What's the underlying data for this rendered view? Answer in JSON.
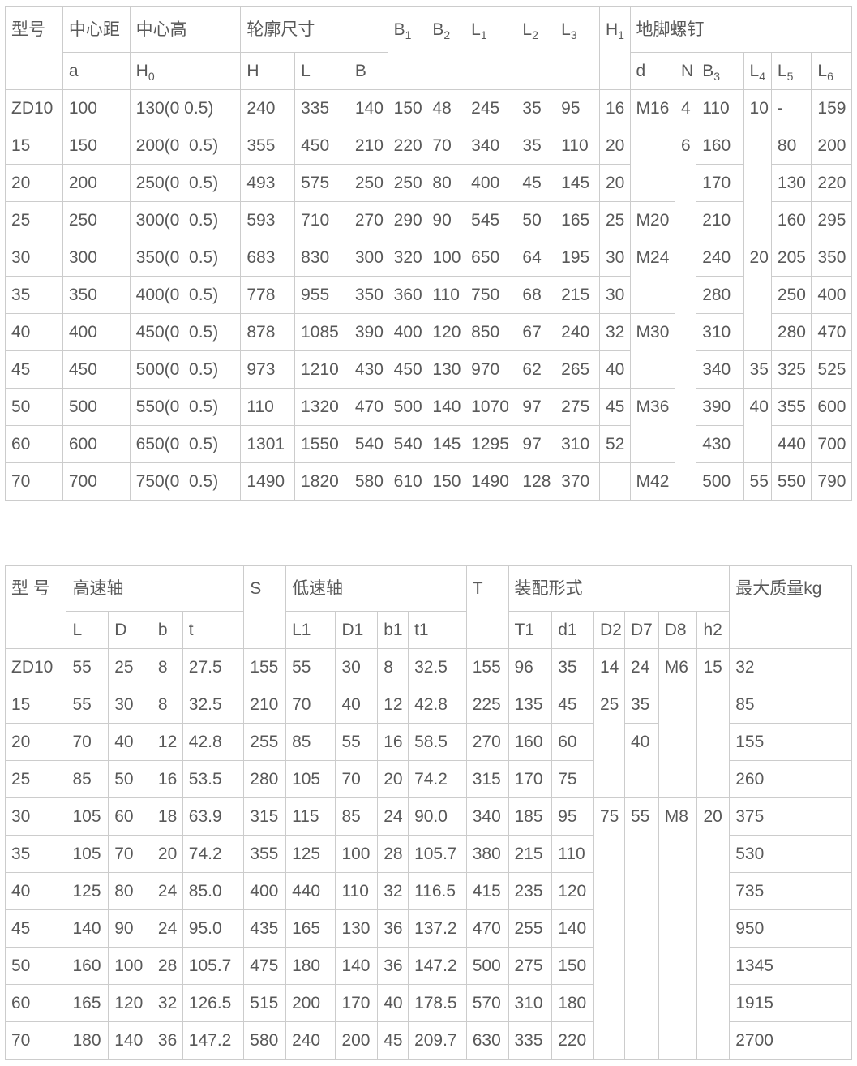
{
  "colors": {
    "text": "#595959",
    "border": "#cccccc",
    "background": "#ffffff"
  },
  "tables": [
    {
      "head": [
        [
          {
            "t": "型号",
            "rs": 2
          },
          {
            "t": "中心距"
          },
          {
            "t": "中心高"
          },
          {
            "t": "轮廓尺寸",
            "cs": 3
          },
          {
            "b": "B",
            "sub": "1",
            "rs": 2
          },
          {
            "b": "B",
            "sub": "2",
            "rs": 2
          },
          {
            "b": "L",
            "sub": "1",
            "rs": 2
          },
          {
            "b": "L",
            "sub": "2",
            "rs": 2
          },
          {
            "b": "L",
            "sub": "3",
            "rs": 2
          },
          {
            "b": "H",
            "sub": "1",
            "rs": 2
          },
          {
            "t": "地脚螺钉",
            "cs": 6
          }
        ],
        [
          {
            "t": "a"
          },
          {
            "b": "H",
            "sub": "0"
          },
          {
            "t": "H"
          },
          {
            "t": "L"
          },
          {
            "t": "B"
          },
          {
            "t": "d"
          },
          {
            "t": "N"
          },
          {
            "b": "B",
            "sub": "3"
          },
          {
            "b": "L",
            "sub": "4"
          },
          {
            "b": "L",
            "sub": "5"
          },
          {
            "b": "L",
            "sub": "6"
          }
        ]
      ],
      "body": [
        [
          "ZD10",
          "100",
          "130(0 0.5)",
          "240",
          "335",
          "140",
          "150",
          "48",
          "245",
          "35",
          "95",
          "16",
          {
            "t": "M16",
            "rs": 3
          },
          "4",
          "110",
          {
            "t": "10",
            "rs": 4
          },
          "-",
          "159"
        ],
        [
          "15",
          "150",
          "200(0  0.5)",
          "355",
          "450",
          "210",
          "220",
          "70",
          "340",
          "35",
          "110",
          "20",
          {
            "t": "6",
            "rs": 10
          },
          "160",
          "80",
          "200"
        ],
        [
          "20",
          "200",
          "250(0  0.5)",
          "493",
          "575",
          "250",
          "250",
          "80",
          "400",
          "45",
          "145",
          "20",
          "170",
          "130",
          "220"
        ],
        [
          "25",
          "250",
          "300(0  0.5)",
          "593",
          "710",
          "270",
          "290",
          "90",
          "545",
          "50",
          "165",
          "25",
          "M20",
          "210",
          "160",
          "295"
        ],
        [
          "30",
          "300",
          "350(0  0.5)",
          "683",
          "830",
          "300",
          "320",
          "100",
          "650",
          "64",
          "195",
          "30",
          {
            "t": "M24",
            "rs": 2
          },
          "240",
          {
            "t": "20",
            "rs": 3
          },
          "205",
          "350"
        ],
        [
          "35",
          "350",
          "400(0  0.5)",
          "778",
          "955",
          "350",
          "360",
          "110",
          "750",
          "68",
          "215",
          "30",
          "280",
          "250",
          "400"
        ],
        [
          "40",
          "400",
          "450(0  0.5)",
          "878",
          "1085",
          "390",
          "400",
          "120",
          "850",
          "67",
          "240",
          "32",
          {
            "t": "M30",
            "rs": 2
          },
          "310",
          "280",
          "470"
        ],
        [
          "45",
          "450",
          "500(0  0.5)",
          "973",
          "1210",
          "430",
          "450",
          "130",
          "970",
          "62",
          "265",
          "40",
          "340",
          "35",
          "325",
          "525"
        ],
        [
          "50",
          "500",
          "550(0  0.5)",
          "110",
          "1320",
          "470",
          "500",
          "140",
          "1070",
          "97",
          "275",
          "45",
          {
            "t": "M36",
            "rs": 2
          },
          "390",
          {
            "t": "40",
            "rs": 2
          },
          "355",
          "600"
        ],
        [
          "60",
          "600",
          "650(0  0.5)",
          "1301",
          "1550",
          "540",
          "540",
          "145",
          "1295",
          "97",
          "310",
          "52",
          "430",
          "440",
          "700"
        ],
        [
          "70",
          "700",
          "750(0  0.5)",
          "1490",
          "1820",
          "580",
          "610",
          "150",
          "1490",
          "128",
          "370",
          "",
          "M42",
          "500",
          "55",
          "550",
          "790"
        ]
      ]
    },
    {
      "head": [
        [
          {
            "t": "型 号",
            "rs": 2
          },
          {
            "t": "高速轴",
            "cs": 4
          },
          {
            "t": "S",
            "rs": 2
          },
          {
            "t": "低速轴",
            "cs": 4
          },
          {
            "t": "T",
            "rs": 2
          },
          {
            "t": "装配形式",
            "cs": 6
          },
          {
            "t": "最大质量kg",
            "rs": 2
          }
        ],
        [
          "L",
          "D",
          "b",
          "t",
          "L1",
          "D1",
          "b1",
          "t1",
          "T1",
          "d1",
          "D2",
          "D7",
          "D8",
          "h2"
        ]
      ],
      "body": [
        [
          "ZD10",
          "55",
          "25",
          "8",
          "27.5",
          "155",
          "55",
          "30",
          "8",
          "32.5",
          "155",
          "96",
          "35",
          "14",
          "24",
          {
            "t": "M6",
            "rs": 4
          },
          {
            "t": "15",
            "rs": 4
          },
          "32"
        ],
        [
          "15",
          "55",
          "30",
          "8",
          "32.5",
          "210",
          "70",
          "40",
          "12",
          "42.8",
          "225",
          "135",
          "45",
          {
            "t": "25",
            "rs": 3
          },
          "35",
          "85"
        ],
        [
          "20",
          "70",
          "40",
          "12",
          "42.8",
          "255",
          "85",
          "55",
          "16",
          "58.5",
          "270",
          "160",
          "60",
          {
            "t": "40",
            "rs": 2
          },
          "155"
        ],
        [
          "25",
          "85",
          "50",
          "16",
          "53.5",
          "280",
          "105",
          "70",
          "20",
          "74.2",
          "315",
          "170",
          "75",
          "260"
        ],
        [
          "30",
          "105",
          "60",
          "18",
          "63.9",
          "315",
          "115",
          "85",
          "24",
          "90.0",
          "340",
          "185",
          "95",
          {
            "t": "75",
            "rs": 7
          },
          {
            "t": "55",
            "rs": 7
          },
          {
            "t": "M8",
            "rs": 7
          },
          {
            "t": "20",
            "rs": 7
          },
          "375"
        ],
        [
          "35",
          "105",
          "70",
          "20",
          "74.2",
          "355",
          "125",
          "100",
          "28",
          "105.7",
          "380",
          "215",
          "110",
          "530"
        ],
        [
          "40",
          "125",
          "80",
          "24",
          "85.0",
          "400",
          "440",
          "110",
          "32",
          "116.5",
          "415",
          "235",
          "120",
          "735"
        ],
        [
          "45",
          "140",
          "90",
          "24",
          "95.0",
          "435",
          "165",
          "130",
          "36",
          "137.2",
          "470",
          "255",
          "140",
          "950"
        ],
        [
          "50",
          "160",
          "100",
          "28",
          "105.7",
          "475",
          "180",
          "140",
          "36",
          "147.2",
          "500",
          "275",
          "150",
          "1345"
        ],
        [
          "60",
          "165",
          "120",
          "32",
          "126.5",
          "515",
          "200",
          "170",
          "40",
          "178.5",
          "570",
          "310",
          "180",
          "1915"
        ],
        [
          "70",
          "180",
          "140",
          "36",
          "147.2",
          "580",
          "240",
          "200",
          "45",
          "209.7",
          "630",
          "335",
          "220",
          "2700"
        ]
      ]
    }
  ]
}
